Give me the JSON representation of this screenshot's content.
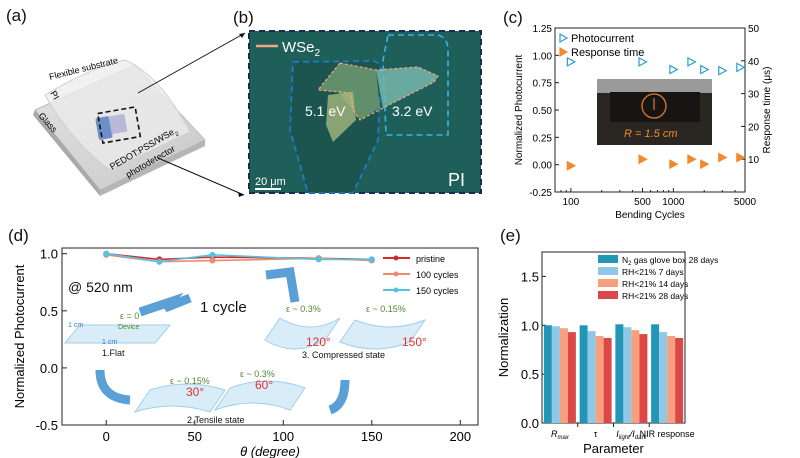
{
  "panels": {
    "a": {
      "label": "(a)",
      "texts": {
        "flexible_substrate": "Flexible substrate",
        "pi": "PI",
        "glass": "Glass",
        "device_line1": "PEDOT:PSS/WSe",
        "device_sub": "2",
        "device_line2": "photodetector"
      }
    },
    "b": {
      "label": "(b)",
      "legend_label": "WSe",
      "legend_sub": "2",
      "region_left": "5.1 eV",
      "region_right": "3.2 eV",
      "scale_bar": "20 μm",
      "substrate": "PI",
      "colors": {
        "background": "#1f5f5a",
        "flake_outline": "#f4a67a",
        "region_left": "#1e7fd0",
        "region_right": "#35b6e8"
      }
    },
    "c": {
      "label": "(c)",
      "inset_text": "R = 1.5 cm"
    },
    "d": {
      "label": "(d)",
      "annotation": "@ 520 nm",
      "cycle_text": "1 cycle",
      "states": {
        "flat": {
          "strain": "ε = 0",
          "device": "Device",
          "dim1": "1 cm",
          "dim2": "1 cm",
          "name": "1.Flat"
        },
        "tensile": {
          "strain1": "ε ~ 0.15%",
          "angle1": "30°",
          "strain2": "ε ~ 0.3%",
          "angle2": "60°",
          "name": "2.Tensile state"
        },
        "compressed": {
          "strain1": "ε ~ 0.3%",
          "angle1": "120°",
          "strain2": "ε ~ 0.15%",
          "angle2": "150°",
          "name": "3. Compressed state"
        }
      }
    },
    "e": {
      "label": "(e)"
    }
  },
  "chart_data": [
    {
      "id": "c",
      "type": "scatter",
      "title": "",
      "xlabel": "Bending Cycles",
      "ylabel": "Normalized Photocurrent",
      "y2label": "Response time (μs)",
      "xscale": "log",
      "xlim": [
        70,
        5000
      ],
      "ylim": [
        -0.25,
        1.25
      ],
      "y2lim": [
        0,
        50
      ],
      "xticks": [
        100,
        500,
        1000,
        5000
      ],
      "xtick_labels": [
        "100",
        "500",
        "1000",
        "5000"
      ],
      "yticks": [
        -0.25,
        0.0,
        0.25,
        0.5,
        0.75,
        1.0,
        1.25
      ],
      "ytick_labels": [
        "-0.25",
        "0.00",
        "0.25",
        "0.50",
        "0.75",
        "1.00",
        "1.25"
      ],
      "y2ticks": [
        10,
        20,
        30,
        40,
        50
      ],
      "y2tick_labels": [
        "10",
        "20",
        "30",
        "40",
        "50"
      ],
      "legend_position": "top-left",
      "series": [
        {
          "name": "Photocurrent",
          "axis": "left",
          "marker": "open-triangle-right",
          "color": "#2a9fd0",
          "x": [
            100,
            500,
            1000,
            1500,
            2000,
            3000,
            4500
          ],
          "values": [
            0.94,
            0.94,
            0.87,
            0.94,
            0.87,
            0.86,
            0.89
          ]
        },
        {
          "name": "Response time",
          "axis": "right",
          "marker": "filled-triangle-right",
          "color": "#f28a2c",
          "x": [
            100,
            500,
            1000,
            1500,
            2000,
            3000,
            4500
          ],
          "values": [
            8,
            10,
            8.5,
            10,
            8.5,
            10.5,
            10.5
          ]
        }
      ]
    },
    {
      "id": "d",
      "type": "line",
      "title": "",
      "xlabel": "θ (degree)",
      "ylabel": "Normalized Photocurrent",
      "xlim": [
        -25,
        210
      ],
      "ylim": [
        -0.5,
        1.05
      ],
      "xticks": [
        0,
        50,
        100,
        150,
        200
      ],
      "xtick_labels": [
        "0",
        "50",
        "100",
        "150",
        "200"
      ],
      "yticks": [
        -0.5,
        0.0,
        0.5,
        1.0
      ],
      "ytick_labels": [
        "-0.5",
        "0.0",
        "0.5",
        "1.0"
      ],
      "legend_position": "top-right",
      "x": [
        0,
        30,
        60,
        120,
        150
      ],
      "series": [
        {
          "name": "pristine",
          "color": "#d42a2a",
          "values": [
            1.0,
            0.95,
            0.97,
            0.96,
            0.95
          ]
        },
        {
          "name": "100 cycles",
          "color": "#f08a6e",
          "values": [
            0.99,
            0.93,
            0.94,
            0.96,
            0.94
          ]
        },
        {
          "name": "150 cycles",
          "color": "#55c3e0",
          "values": [
            1.0,
            0.93,
            0.99,
            0.95,
            0.95
          ]
        }
      ]
    },
    {
      "id": "e",
      "type": "bar",
      "title": "",
      "xlabel": "Parameter",
      "ylabel": "Normalization",
      "ylim": [
        0,
        1.75
      ],
      "yticks": [
        0.0,
        0.5,
        1.0,
        1.5
      ],
      "ytick_labels": [
        "0.0",
        "0.5",
        "1.0",
        "1.5"
      ],
      "categories": [
        {
          "main": "R",
          "sub": "max",
          "italic": true
        },
        {
          "main": "τ",
          "sub": "",
          "italic": false
        },
        {
          "main": "I",
          "sub": "light",
          "tail": "/I",
          "sub2": "dark",
          "italic": true
        },
        {
          "main": "NIR response",
          "sub": "",
          "italic": false
        }
      ],
      "legend_position": "top-right",
      "series": [
        {
          "name": "N",
          "name_sub": "2",
          "name_tail": " gas glove box 28 days",
          "color": "#2196b6",
          "values": [
            1.0,
            1.0,
            1.01,
            1.01
          ]
        },
        {
          "name": "RH<21% 7 days",
          "color": "#8fc7e6",
          "values": [
            0.99,
            0.94,
            0.98,
            0.93
          ]
        },
        {
          "name": "RH<21% 14 days",
          "color": "#f7a07e",
          "values": [
            0.97,
            0.89,
            0.95,
            0.89
          ]
        },
        {
          "name": "RH<21% 28 days",
          "color": "#dc4848",
          "values": [
            0.93,
            0.87,
            0.91,
            0.87
          ]
        }
      ]
    }
  ]
}
